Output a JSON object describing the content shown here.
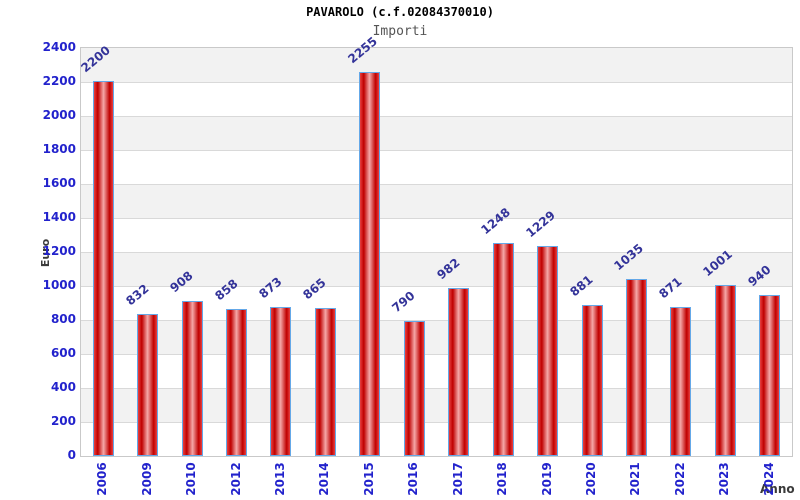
{
  "chart_data": {
    "type": "bar",
    "title": "PAVAROLO (c.f.02084370010)",
    "subtitle": "Importi",
    "xlabel": "Anno",
    "ylabel": "Euro",
    "categories": [
      "2006",
      "2009",
      "2010",
      "2012",
      "2013",
      "2014",
      "2015",
      "2016",
      "2017",
      "2018",
      "2019",
      "2020",
      "2021",
      "2022",
      "2023",
      "2024"
    ],
    "values": [
      2200,
      832,
      908,
      858,
      873,
      865,
      2255,
      790,
      982,
      1248,
      1229,
      881,
      1035,
      871,
      1001,
      940
    ],
    "ylim": [
      0,
      2400
    ],
    "ytick_step": 200,
    "grid": "horizontal",
    "legend": "none",
    "colors": {
      "bar_edge": "#e84040",
      "bar_dark": "#bf0000",
      "bar_light": "#f5a8a8",
      "bar_border": "#64a8e8",
      "band_gray": "#f2f2f2",
      "band_white": "#ffffff",
      "gridline": "#d9d9d9",
      "plot_border": "#c9c9c9",
      "tick_label": "#2222cc",
      "value_label": "#333399",
      "axis_title": "#3a3a3a",
      "title": "#000000",
      "subtitle": "#555555"
    }
  }
}
